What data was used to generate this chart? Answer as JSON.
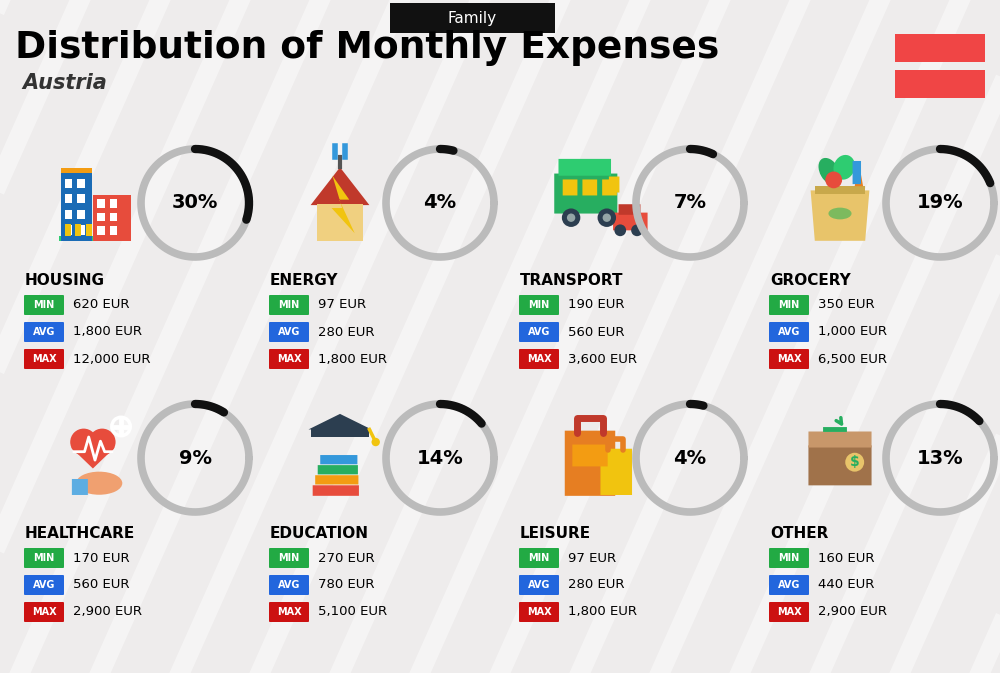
{
  "title": "Distribution of Monthly Expenses",
  "subtitle": "Austria",
  "header_label": "Family",
  "bg_color": "#eeecec",
  "categories": [
    {
      "name": "HOUSING",
      "pct": 30,
      "min": "620 EUR",
      "avg": "1,800 EUR",
      "max": "12,000 EUR"
    },
    {
      "name": "ENERGY",
      "pct": 4,
      "min": "97 EUR",
      "avg": "280 EUR",
      "max": "1,800 EUR"
    },
    {
      "name": "TRANSPORT",
      "pct": 7,
      "min": "190 EUR",
      "avg": "560 EUR",
      "max": "3,600 EUR"
    },
    {
      "name": "GROCERY",
      "pct": 19,
      "min": "350 EUR",
      "avg": "1,000 EUR",
      "max": "6,500 EUR"
    },
    {
      "name": "HEALTHCARE",
      "pct": 9,
      "min": "170 EUR",
      "avg": "560 EUR",
      "max": "2,900 EUR"
    },
    {
      "name": "EDUCATION",
      "pct": 14,
      "min": "270 EUR",
      "avg": "780 EUR",
      "max": "5,100 EUR"
    },
    {
      "name": "LEISURE",
      "pct": 4,
      "min": "97 EUR",
      "avg": "280 EUR",
      "max": "1,800 EUR"
    },
    {
      "name": "OTHER",
      "pct": 13,
      "min": "160 EUR",
      "avg": "440 EUR",
      "max": "2,900 EUR"
    }
  ],
  "min_color": "#22aa44",
  "avg_color": "#2266dd",
  "max_color": "#cc1111",
  "arc_fg_color": "#111111",
  "arc_bg_color": "#bbbbbb",
  "austria_red": "#f04545",
  "header_bg": "#111111",
  "header_text": "#ffffff",
  "stripe_color": "#ffffff",
  "stripe_alpha": 0.45,
  "stripe_lw": 14
}
